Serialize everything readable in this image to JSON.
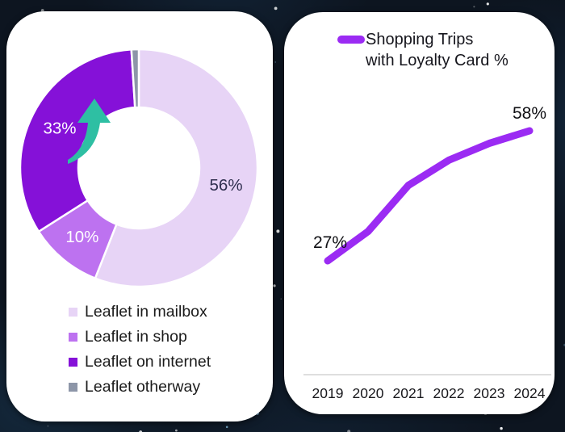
{
  "page": {
    "background_color": "#0d1520",
    "star_color": "#ffffff"
  },
  "chart_data": [
    {
      "type": "pie",
      "subtype": "donut",
      "categories": [
        "Leaflet in mailbox",
        "Leaflet in shop",
        "Leaflet on internet",
        "Leaflet otherway"
      ],
      "values": [
        56,
        10,
        33,
        1
      ],
      "value_labels": [
        "56%",
        "10%",
        "33%",
        ""
      ],
      "value_label_colors": [
        "#2f2f4f",
        "#ffffff",
        "#ffffff",
        ""
      ],
      "colors": [
        "#e7d4f6",
        "#bd72f0",
        "#8511d8",
        "#8d96a8"
      ],
      "legend_position": "bottom-left",
      "annotations": [
        {
          "name": "growth-arrow",
          "color": "#2ebfa3"
        }
      ]
    },
    {
      "type": "line",
      "title": "Shopping Trips with Loyalty Card %",
      "title_lines": [
        "Shopping Trips",
        "with Loyalty Card %"
      ],
      "categories": [
        "2019",
        "2020",
        "2021",
        "2022",
        "2023",
        "2024"
      ],
      "values": [
        27,
        34,
        45,
        51,
        55,
        58
      ],
      "first_point_label": "27%",
      "last_point_label": "58%",
      "line_color": "#9b2bf3",
      "axis_line_color": "#d3d3d3",
      "tick_label_color": "#18181c",
      "data_label_color": "#101014",
      "ylim": [
        25,
        60
      ],
      "grid": false,
      "legend_position": "top"
    }
  ]
}
